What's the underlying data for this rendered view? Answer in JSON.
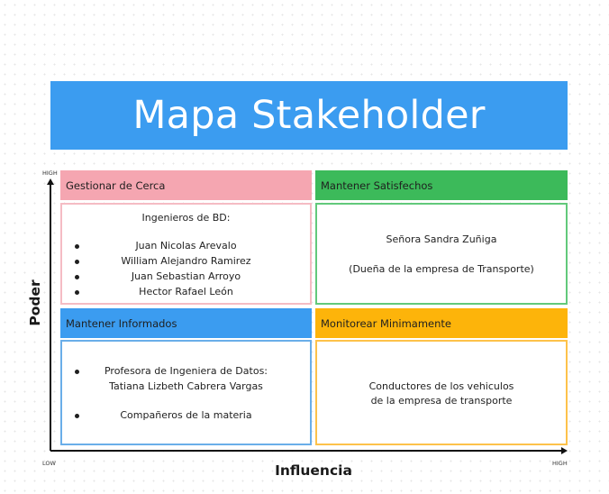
{
  "title": "Mapa Stakeholder",
  "axes": {
    "y_label": "Poder",
    "x_label": "Influencia",
    "y_high": "HIGH",
    "origin_low": "LOW",
    "x_high": "HIGH"
  },
  "quadrants": {
    "top_left": {
      "header": "Gestionar de Cerca",
      "intro": "Ingenieros de BD:",
      "items": [
        "Juan Nicolas Arevalo",
        "William Alejandro Ramirez",
        "Juan Sebastian Arroyo",
        "Hector Rafael León"
      ],
      "color": "#f5a6b1"
    },
    "top_right": {
      "header": "Mantener Satisfechos",
      "lines": [
        "Señora Sandra Zuñiga",
        "(Dueña de la empresa de Transporte)"
      ],
      "color": "#3cba5a"
    },
    "bottom_left": {
      "header": "Mantener Informados",
      "items": [
        {
          "line1": "Profesora de Ingeniera de Datos:",
          "line2": "Tatiana Lizbeth Cabrera Vargas"
        },
        {
          "line1": "Compañeros de la materia"
        }
      ],
      "color": "#3b9cf0"
    },
    "bottom_right": {
      "header": "Monitorear Minimamente",
      "lines": [
        "Conductores de los vehiculos",
        "de la empresa de transporte"
      ],
      "color": "#fdb40a"
    }
  }
}
